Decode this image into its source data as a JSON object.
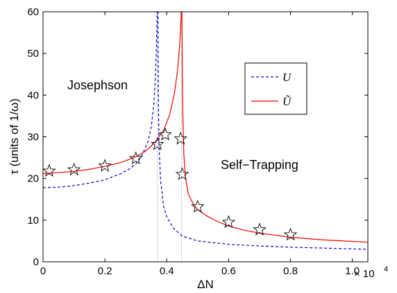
{
  "chart_data": {
    "type": "line",
    "xlabel": "ΔN",
    "ylabel": "τ (units of 1/ω)",
    "xlim": [
      0,
      10500
    ],
    "ylim": [
      0,
      60
    ],
    "x_ticks": [
      0,
      2000,
      4000,
      6000,
      8000,
      10000
    ],
    "x_tick_labels": [
      "0",
      "0.2",
      "0.4",
      "0.6",
      "0.8",
      "1.0"
    ],
    "y_ticks": [
      0,
      10,
      20,
      30,
      40,
      50,
      60
    ],
    "y_tick_labels": [
      "0",
      "10",
      "20",
      "30",
      "40",
      "50",
      "60"
    ],
    "x_multiplier": {
      "base": "× 10",
      "exponent": "4"
    },
    "grid": false,
    "legend_position": "upper-right-inside",
    "annotations": [
      {
        "text": "Josephson",
        "x": 1800,
        "y": 42.5
      },
      {
        "text": "Self−Trapping",
        "x": 7400,
        "y": 23
      }
    ],
    "critical_lines": [
      {
        "x": 3700,
        "series": "U"
      },
      {
        "x": 4480,
        "series": "Ũ"
      }
    ],
    "series": [
      {
        "name": "U",
        "style": "dashed",
        "color": "#0000cc",
        "critical": 3700,
        "left": {
          "x": [
            0,
            500,
            1000,
            1500,
            2000,
            2500,
            2800,
            3000,
            3200,
            3400,
            3500,
            3580,
            3630,
            3660,
            3680,
            3690
          ],
          "y": [
            17.8,
            17.9,
            18.3,
            18.9,
            19.7,
            21.1,
            22.3,
            23.5,
            25.5,
            29,
            32.5,
            37.8,
            44,
            50,
            56.5,
            60
          ]
        },
        "right": {
          "x": [
            3715,
            3720,
            3730,
            3750,
            3800,
            3900,
            4000,
            4200,
            4500,
            5000,
            6000,
            7000,
            8000,
            9000,
            10000,
            10500
          ],
          "y": [
            60,
            49,
            37.8,
            28,
            19.5,
            13.3,
            10.8,
            8.2,
            6.2,
            5,
            4.2,
            3.8,
            3.5,
            3.3,
            3.1,
            3
          ]
        }
      },
      {
        "name": "Ũ",
        "style": "solid",
        "color": "#ee0000",
        "critical": 4480,
        "left": {
          "x": [
            0,
            500,
            1000,
            1500,
            2000,
            2500,
            3000,
            3300,
            3600,
            3900,
            4100,
            4250,
            4350,
            4410,
            4440,
            4460,
            4470
          ],
          "y": [
            21.2,
            21.4,
            21.7,
            22.2,
            22.9,
            23.8,
            25.2,
            26.5,
            28.5,
            31.5,
            35.5,
            40.5,
            46,
            51.5,
            55,
            58.5,
            60
          ]
        },
        "right": {
          "x": [
            4490,
            4500,
            4520,
            4550,
            4600,
            4700,
            4850,
            5000,
            5300,
            5600,
            6000,
            6500,
            7000,
            8000,
            9000,
            10000,
            10500
          ],
          "y": [
            60,
            48,
            35,
            26,
            20.5,
            16.2,
            14,
            12.5,
            11,
            9.8,
            8.6,
            7.6,
            6.9,
            5.9,
            5.3,
            4.9,
            4.7
          ]
        }
      },
      {
        "name": "",
        "style": "markers",
        "marker": "star",
        "x": [
          200,
          1000,
          2000,
          3000,
          3700,
          3950,
          4450,
          4500,
          5000,
          6000,
          7000,
          8000
        ],
        "y": [
          21.8,
          22.1,
          23,
          24.8,
          28.2,
          30.5,
          29.5,
          21,
          13.2,
          9.5,
          7.7,
          6.5
        ]
      }
    ]
  }
}
